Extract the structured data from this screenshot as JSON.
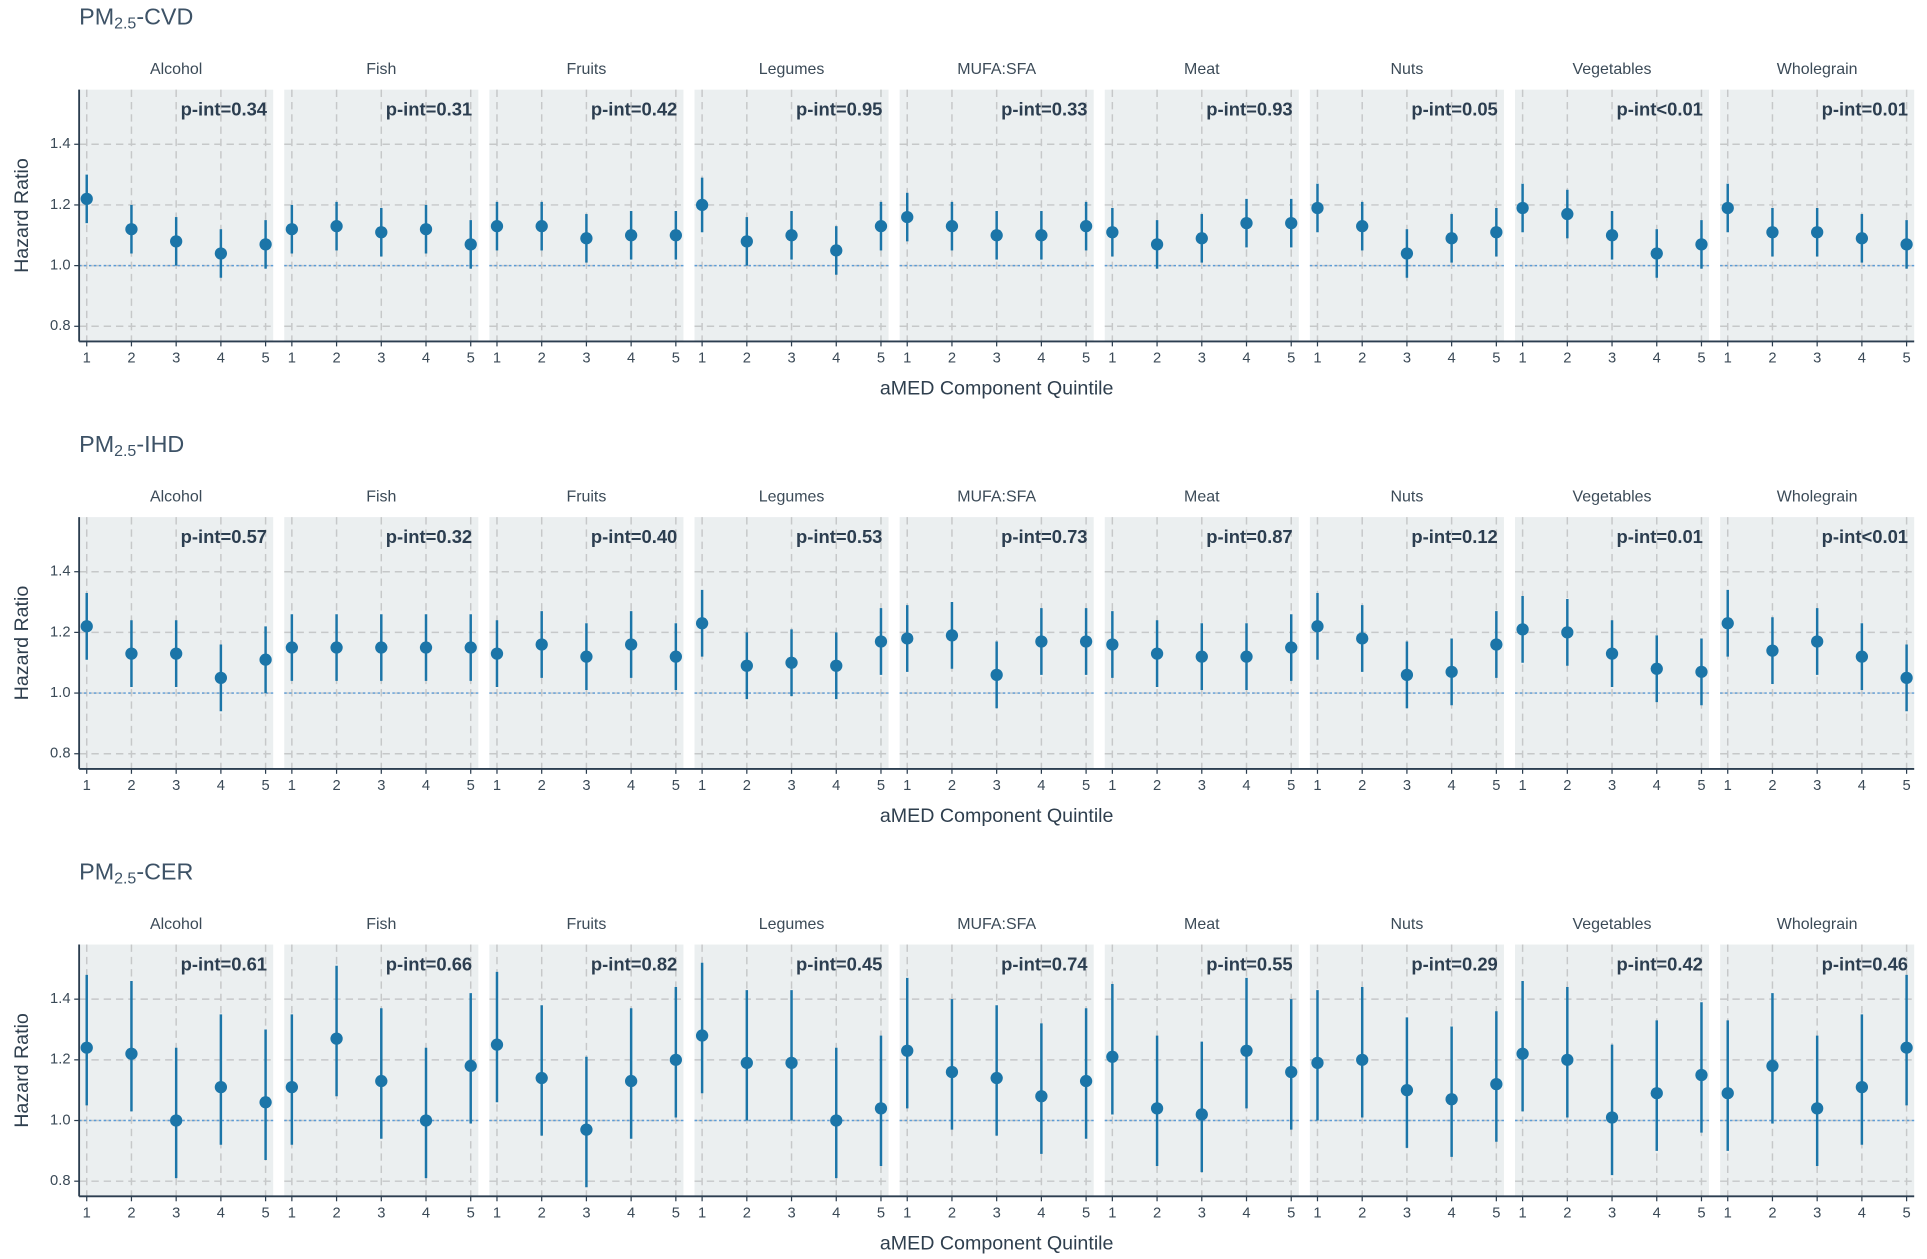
{
  "chart_data": [
    {
      "type": "pointrange",
      "title": [
        "PM",
        "2.5",
        "-CVD"
      ],
      "xlabel": "aMED Component Quintile",
      "ylabel": "Hazard Ratio",
      "x": [
        1,
        2,
        3,
        4,
        5
      ],
      "xlim": [
        0.83,
        5.17
      ],
      "ylim": [
        0.75,
        1.58
      ],
      "yticks": [
        0.8,
        {
          "value": 1,
          "label": "1.0"
        },
        1.2,
        1.4
      ],
      "refline": 1,
      "grid": true,
      "color": "#1b75a8",
      "panels": [
        {
          "name": "Alcohol",
          "annotation": "p-int=0.34",
          "values": [
            1.22,
            1.12,
            1.08,
            1.04,
            1.07
          ],
          "lower": [
            1.14,
            1.04,
            1.0,
            0.96,
            0.99
          ],
          "upper": [
            1.3,
            1.2,
            1.16,
            1.12,
            1.15
          ]
        },
        {
          "name": "Fish",
          "annotation": "p-int=0.31",
          "values": [
            1.12,
            1.13,
            1.11,
            1.12,
            1.07
          ],
          "lower": [
            1.04,
            1.05,
            1.03,
            1.04,
            0.99
          ],
          "upper": [
            1.2,
            1.21,
            1.19,
            1.2,
            1.15
          ]
        },
        {
          "name": "Fruits",
          "annotation": "p-int=0.42",
          "values": [
            1.13,
            1.13,
            1.09,
            1.1,
            1.1
          ],
          "lower": [
            1.05,
            1.05,
            1.01,
            1.02,
            1.02
          ],
          "upper": [
            1.21,
            1.21,
            1.17,
            1.18,
            1.18
          ]
        },
        {
          "name": "Legumes",
          "annotation": "p-int=0.95",
          "values": [
            1.2,
            1.08,
            1.1,
            1.05,
            1.13
          ],
          "lower": [
            1.11,
            1.0,
            1.02,
            0.97,
            1.05
          ],
          "upper": [
            1.29,
            1.16,
            1.18,
            1.13,
            1.21
          ]
        },
        {
          "name": "MUFA:SFA",
          "annotation": "p-int=0.33",
          "values": [
            1.16,
            1.13,
            1.1,
            1.1,
            1.13
          ],
          "lower": [
            1.08,
            1.05,
            1.02,
            1.02,
            1.05
          ],
          "upper": [
            1.24,
            1.21,
            1.18,
            1.18,
            1.21
          ]
        },
        {
          "name": "Meat",
          "annotation": "p-int=0.93",
          "values": [
            1.11,
            1.07,
            1.09,
            1.14,
            1.14
          ],
          "lower": [
            1.03,
            0.99,
            1.01,
            1.06,
            1.06
          ],
          "upper": [
            1.19,
            1.15,
            1.17,
            1.22,
            1.22
          ]
        },
        {
          "name": "Nuts",
          "annotation": "p-int=0.05",
          "values": [
            1.19,
            1.13,
            1.04,
            1.09,
            1.11
          ],
          "lower": [
            1.11,
            1.05,
            0.96,
            1.01,
            1.03
          ],
          "upper": [
            1.27,
            1.21,
            1.12,
            1.17,
            1.19
          ]
        },
        {
          "name": "Vegetables",
          "annotation": "p-int<0.01",
          "values": [
            1.19,
            1.17,
            1.1,
            1.04,
            1.07
          ],
          "lower": [
            1.11,
            1.09,
            1.02,
            0.96,
            0.99
          ],
          "upper": [
            1.27,
            1.25,
            1.18,
            1.12,
            1.15
          ]
        },
        {
          "name": "Wholegrain",
          "annotation": "p-int=0.01",
          "values": [
            1.19,
            1.11,
            1.11,
            1.09,
            1.07
          ],
          "lower": [
            1.11,
            1.03,
            1.03,
            1.01,
            0.99
          ],
          "upper": [
            1.27,
            1.19,
            1.19,
            1.17,
            1.15
          ]
        }
      ]
    },
    {
      "type": "pointrange",
      "title": [
        "PM",
        "2.5",
        "-IHD"
      ],
      "xlabel": "aMED Component Quintile",
      "ylabel": "Hazard Ratio",
      "x": [
        1,
        2,
        3,
        4,
        5
      ],
      "xlim": [
        0.83,
        5.17
      ],
      "ylim": [
        0.75,
        1.58
      ],
      "yticks": [
        0.8,
        {
          "value": 1,
          "label": "1.0"
        },
        1.2,
        1.4
      ],
      "refline": 1,
      "grid": true,
      "color": "#1b75a8",
      "panels": [
        {
          "name": "Alcohol",
          "annotation": "p-int=0.57",
          "values": [
            1.22,
            1.13,
            1.13,
            1.05,
            1.11
          ],
          "lower": [
            1.11,
            1.02,
            1.02,
            0.94,
            1.0
          ],
          "upper": [
            1.33,
            1.24,
            1.24,
            1.16,
            1.22
          ]
        },
        {
          "name": "Fish",
          "annotation": "p-int=0.32",
          "values": [
            1.15,
            1.15,
            1.15,
            1.15,
            1.15
          ],
          "lower": [
            1.04,
            1.04,
            1.04,
            1.04,
            1.04
          ],
          "upper": [
            1.26,
            1.26,
            1.26,
            1.26,
            1.26
          ]
        },
        {
          "name": "Fruits",
          "annotation": "p-int=0.40",
          "values": [
            1.13,
            1.16,
            1.12,
            1.16,
            1.12
          ],
          "lower": [
            1.02,
            1.05,
            1.01,
            1.05,
            1.01
          ],
          "upper": [
            1.24,
            1.27,
            1.23,
            1.27,
            1.23
          ]
        },
        {
          "name": "Legumes",
          "annotation": "p-int=0.53",
          "values": [
            1.23,
            1.09,
            1.1,
            1.09,
            1.17
          ],
          "lower": [
            1.12,
            0.98,
            0.99,
            0.98,
            1.06
          ],
          "upper": [
            1.34,
            1.2,
            1.21,
            1.2,
            1.28
          ]
        },
        {
          "name": "MUFA:SFA",
          "annotation": "p-int=0.73",
          "values": [
            1.18,
            1.19,
            1.06,
            1.17,
            1.17
          ],
          "lower": [
            1.07,
            1.08,
            0.95,
            1.06,
            1.06
          ],
          "upper": [
            1.29,
            1.3,
            1.17,
            1.28,
            1.28
          ]
        },
        {
          "name": "Meat",
          "annotation": "p-int=0.87",
          "values": [
            1.16,
            1.13,
            1.12,
            1.12,
            1.15
          ],
          "lower": [
            1.05,
            1.02,
            1.01,
            1.01,
            1.04
          ],
          "upper": [
            1.27,
            1.24,
            1.23,
            1.23,
            1.26
          ]
        },
        {
          "name": "Nuts",
          "annotation": "p-int=0.12",
          "values": [
            1.22,
            1.18,
            1.06,
            1.07,
            1.16
          ],
          "lower": [
            1.11,
            1.07,
            0.95,
            0.96,
            1.05
          ],
          "upper": [
            1.33,
            1.29,
            1.17,
            1.18,
            1.27
          ]
        },
        {
          "name": "Vegetables",
          "annotation": "p-int=0.01",
          "values": [
            1.21,
            1.2,
            1.13,
            1.08,
            1.07
          ],
          "lower": [
            1.1,
            1.09,
            1.02,
            0.97,
            0.96
          ],
          "upper": [
            1.32,
            1.31,
            1.24,
            1.19,
            1.18
          ]
        },
        {
          "name": "Wholegrain",
          "annotation": "p-int<0.01",
          "values": [
            1.23,
            1.14,
            1.17,
            1.12,
            1.05
          ],
          "lower": [
            1.12,
            1.03,
            1.06,
            1.01,
            0.94
          ],
          "upper": [
            1.34,
            1.25,
            1.28,
            1.23,
            1.16
          ]
        }
      ]
    },
    {
      "type": "pointrange",
      "title": [
        "PM",
        "2.5",
        "-CER"
      ],
      "xlabel": "aMED Component Quintile",
      "ylabel": "Hazard Ratio",
      "x": [
        1,
        2,
        3,
        4,
        5
      ],
      "xlim": [
        0.83,
        5.17
      ],
      "ylim": [
        0.75,
        1.58
      ],
      "yticks": [
        0.8,
        {
          "value": 1,
          "label": "1.0"
        },
        1.2,
        1.4
      ],
      "refline": 1,
      "grid": true,
      "color": "#1b75a8",
      "panels": [
        {
          "name": "Alcohol",
          "annotation": "p-int=0.61",
          "values": [
            1.24,
            1.22,
            1.0,
            1.11,
            1.06
          ],
          "lower": [
            1.05,
            1.03,
            0.81,
            0.92,
            0.87
          ],
          "upper": [
            1.48,
            1.46,
            1.24,
            1.35,
            1.3
          ]
        },
        {
          "name": "Fish",
          "annotation": "p-int=0.66",
          "values": [
            1.11,
            1.27,
            1.13,
            1.0,
            1.18
          ],
          "lower": [
            0.92,
            1.08,
            0.94,
            0.81,
            0.99
          ],
          "upper": [
            1.35,
            1.51,
            1.37,
            1.24,
            1.42
          ]
        },
        {
          "name": "Fruits",
          "annotation": "p-int=0.82",
          "values": [
            1.25,
            1.14,
            0.97,
            1.13,
            1.2
          ],
          "lower": [
            1.06,
            0.95,
            0.78,
            0.94,
            1.01
          ],
          "upper": [
            1.49,
            1.38,
            1.21,
            1.37,
            1.44
          ]
        },
        {
          "name": "Legumes",
          "annotation": "p-int=0.45",
          "values": [
            1.28,
            1.19,
            1.19,
            1.0,
            1.04
          ],
          "lower": [
            1.09,
            1.0,
            1.0,
            0.81,
            0.85
          ],
          "upper": [
            1.52,
            1.43,
            1.43,
            1.24,
            1.28
          ]
        },
        {
          "name": "MUFA:SFA",
          "annotation": "p-int=0.74",
          "values": [
            1.23,
            1.16,
            1.14,
            1.08,
            1.13
          ],
          "lower": [
            1.04,
            0.97,
            0.95,
            0.89,
            0.94
          ],
          "upper": [
            1.47,
            1.4,
            1.38,
            1.32,
            1.37
          ]
        },
        {
          "name": "Meat",
          "annotation": "p-int=0.55",
          "values": [
            1.21,
            1.04,
            1.02,
            1.23,
            1.16
          ],
          "lower": [
            1.02,
            0.85,
            0.83,
            1.04,
            0.97
          ],
          "upper": [
            1.45,
            1.28,
            1.26,
            1.47,
            1.4
          ]
        },
        {
          "name": "Nuts",
          "annotation": "p-int=0.29",
          "values": [
            1.19,
            1.2,
            1.1,
            1.07,
            1.12
          ],
          "lower": [
            1.0,
            1.01,
            0.91,
            0.88,
            0.93
          ],
          "upper": [
            1.43,
            1.44,
            1.34,
            1.31,
            1.36
          ]
        },
        {
          "name": "Vegetables",
          "annotation": "p-int=0.42",
          "values": [
            1.22,
            1.2,
            1.01,
            1.09,
            1.15
          ],
          "lower": [
            1.03,
            1.01,
            0.82,
            0.9,
            0.96
          ],
          "upper": [
            1.46,
            1.44,
            1.25,
            1.33,
            1.39
          ]
        },
        {
          "name": "Wholegrain",
          "annotation": "p-int=0.46",
          "values": [
            1.09,
            1.18,
            1.04,
            1.11,
            1.24
          ],
          "lower": [
            0.9,
            0.99,
            0.85,
            0.92,
            1.05
          ],
          "upper": [
            1.33,
            1.42,
            1.28,
            1.35,
            1.48
          ]
        }
      ]
    }
  ]
}
